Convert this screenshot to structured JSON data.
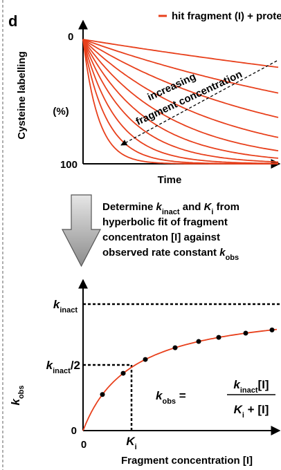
{
  "panel_label": "d",
  "top": {
    "legend": "hit fragment (I) + protein",
    "y_label": "Cysteine labelling",
    "y_unit": "(%)",
    "y_top": "0",
    "y_bottom": "100",
    "x_label": "Time",
    "annotation": [
      "increasing",
      "fragment concentration"
    ]
  },
  "description": [
    [
      "Determine ",
      "k",
      "inact",
      " and ",
      "K",
      "i",
      " from"
    ],
    [
      "hyperbolic fit of fragment"
    ],
    [
      "concentraton [I] against"
    ],
    [
      "observed rate constant ",
      "k",
      "obs"
    ]
  ],
  "bottom": {
    "y_label": [
      "k",
      "obs"
    ],
    "k_inact": [
      "k",
      "inact"
    ],
    "k_half": [
      "k",
      "inact",
      "/2"
    ],
    "y_zero": "0",
    "x_zero": "0",
    "K_i": [
      "K",
      "i"
    ],
    "x_label": "Fragment concentration [I]",
    "equation": {
      "lhs": [
        "k",
        "obs",
        " ="
      ],
      "numerator": [
        "k",
        "inact",
        "[I]"
      ],
      "denominator": [
        "K",
        "i",
        " + [I]"
      ]
    }
  }
}
